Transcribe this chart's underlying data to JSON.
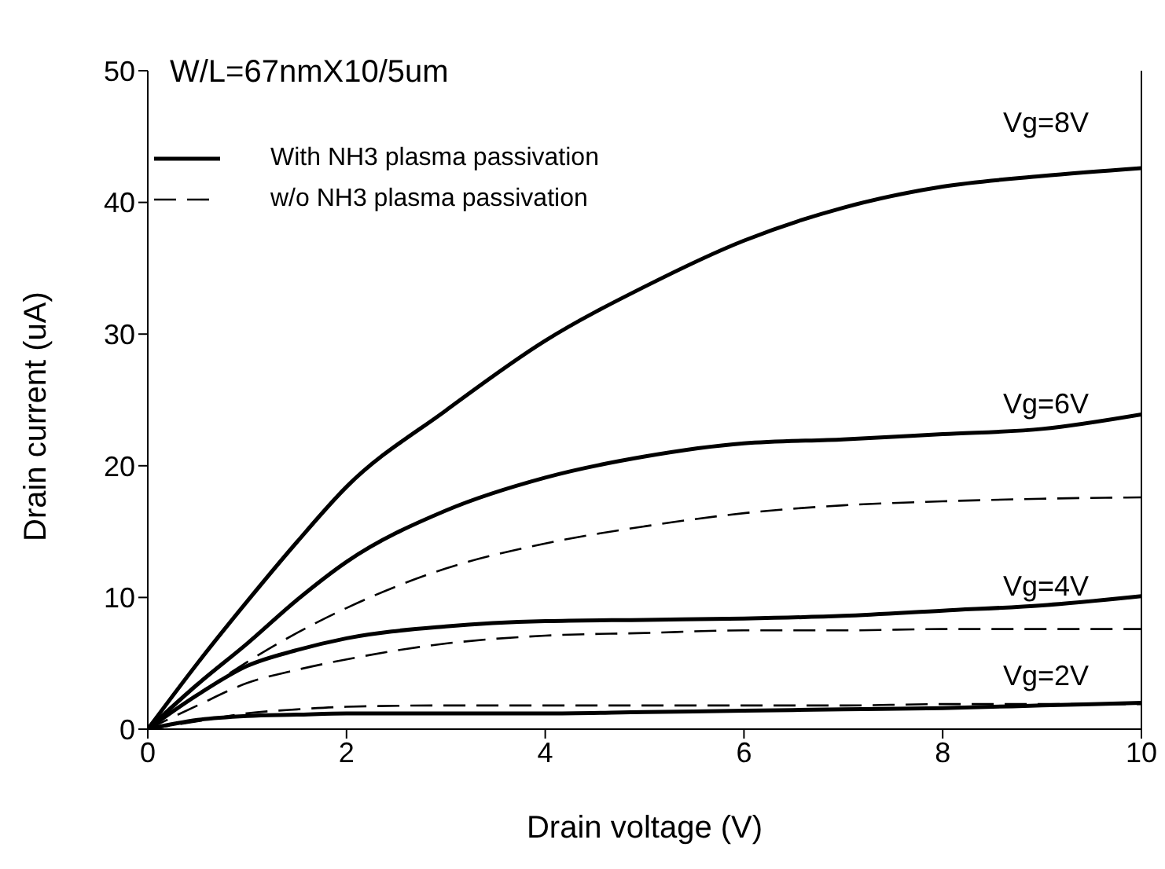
{
  "chart_data": {
    "type": "line",
    "xlabel": "Drain voltage (V)",
    "ylabel": "Drain current (uA)",
    "x": [
      0,
      0.5,
      1,
      1.5,
      2,
      3,
      4,
      5,
      6,
      7,
      8,
      9,
      10
    ],
    "xlim": [
      0,
      10
    ],
    "xticks": [
      0,
      2,
      4,
      6,
      8,
      10
    ],
    "ylim": [
      0,
      50
    ],
    "yticks": [
      0,
      10,
      20,
      30,
      40,
      50
    ],
    "grid": false,
    "legend": "top left",
    "marker": "none",
    "series": [
      {
        "name": "With NH3 plasma passivation",
        "color": "#000000",
        "line_style": "solid",
        "values": [
          0,
          5.0,
          9.7,
          14.2,
          18.4,
          24.2,
          29.5,
          33.6,
          37.1,
          39.6,
          41.2,
          42.0,
          42.6
        ]
      },
      {
        "color": "#000000",
        "line_style": "solid",
        "values": [
          0,
          3.4,
          6.5,
          9.8,
          12.7,
          16.6,
          19.1,
          20.7,
          21.7,
          22.0,
          22.4,
          22.8,
          23.9
        ]
      },
      {
        "name": "w/o NH3 plasma passivation",
        "color": "#000000",
        "line_style": "dashed",
        "values": [
          0,
          2.6,
          5.1,
          7.3,
          9.2,
          12.2,
          14.1,
          15.4,
          16.4,
          17.0,
          17.3,
          17.5,
          17.6
        ]
      },
      {
        "color": "#000000",
        "line_style": "solid",
        "values": [
          0,
          2.6,
          4.8,
          6.0,
          6.9,
          7.8,
          8.2,
          8.3,
          8.4,
          8.6,
          9.0,
          9.4,
          10.1
        ]
      },
      {
        "color": "#000000",
        "line_style": "dashed",
        "values": [
          0,
          1.8,
          3.5,
          4.5,
          5.3,
          6.5,
          7.1,
          7.3,
          7.5,
          7.5,
          7.6,
          7.6,
          7.6
        ]
      },
      {
        "color": "#000000",
        "line_style": "solid",
        "values": [
          0,
          0.7,
          1.0,
          1.1,
          1.2,
          1.2,
          1.2,
          1.3,
          1.4,
          1.5,
          1.6,
          1.8,
          2.0
        ]
      },
      {
        "color": "#000000",
        "line_style": "dashed",
        "values": [
          0,
          0.6,
          1.2,
          1.5,
          1.7,
          1.8,
          1.8,
          1.8,
          1.8,
          1.8,
          1.9,
          1.9,
          1.9
        ]
      }
    ],
    "annotations": [
      "W/L=67nmX10/5um",
      "Vg=8V",
      "Vg=6V",
      "Vg=4V",
      "Vg=2V"
    ]
  }
}
